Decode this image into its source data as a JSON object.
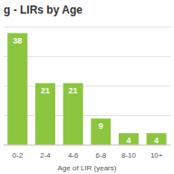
{
  "chart_data": {
    "type": "bar",
    "title": "g - LIRs by Age",
    "x_label": "Age of LIR (years)",
    "categories": [
      "0-2",
      "2-4",
      "4-6",
      "6-8",
      "8-10",
      "10+"
    ],
    "values": [
      38,
      21,
      21,
      9,
      4,
      4
    ],
    "color": "#8cc63f",
    "ylim": [
      0,
      40
    ],
    "yticks": [
      0,
      10,
      20,
      30,
      40
    ],
    "grid": true,
    "data_labels": true,
    "tick_labels": "x"
  }
}
